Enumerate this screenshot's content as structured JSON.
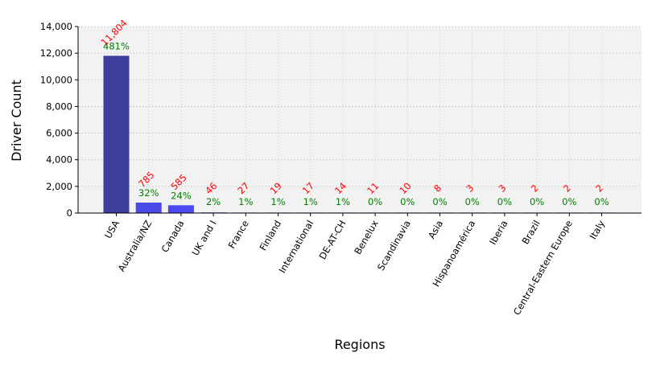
{
  "chart_data": {
    "type": "bar",
    "xlabel": "Regions",
    "ylabel": "Driver Count",
    "ylim": [
      0,
      14000
    ],
    "yticks": [
      0,
      2000,
      4000,
      6000,
      8000,
      10000,
      12000,
      14000
    ],
    "ytick_labels": [
      "0",
      "2,000",
      "4,000",
      "6,000",
      "8,000",
      "10,000",
      "12,000",
      "14,000"
    ],
    "grid": true,
    "categories": [
      "USA",
      "Australia/NZ",
      "Canada",
      "UK and I",
      "France",
      "Finland",
      "International",
      "DE-AT-CH",
      "Benelux",
      "Scandinavia",
      "Asia",
      "Hispanoamérica",
      "Iberia",
      "Brazil",
      "Central-Eastern Europe",
      "Italy"
    ],
    "values": [
      11804,
      785,
      585,
      46,
      27,
      19,
      17,
      14,
      11,
      10,
      8,
      3,
      3,
      2,
      2,
      2
    ],
    "value_labels": [
      "11,804",
      "785",
      "585",
      "46",
      "27",
      "19",
      "17",
      "14",
      "11",
      "10",
      "8",
      "3",
      "3",
      "2",
      "2",
      "2"
    ],
    "growth_labels": [
      "481%",
      "32%",
      "24%",
      "2%",
      "1%",
      "1%",
      "1%",
      "1%",
      "0%",
      "0%",
      "0%",
      "0%",
      "0%",
      "0%",
      "0%",
      "0%"
    ],
    "bar_colors": [
      "#3d3d9e",
      "#4a4ae6",
      "#4a4af0",
      "#4a4ae6",
      "#4a4ae6",
      "#4a4ae6",
      "#4a4ae6",
      "#4a4ae6",
      "#4a4ae6",
      "#4a4ae6",
      "#4a4ae6",
      "#4a4ae6",
      "#4a4ae6",
      "#4a4ae6",
      "#4a4ae6",
      "#4a4ae6"
    ],
    "value_label_color": "#ff0000",
    "growth_label_color": "#008000",
    "plot_background": "#f2f2f2"
  }
}
